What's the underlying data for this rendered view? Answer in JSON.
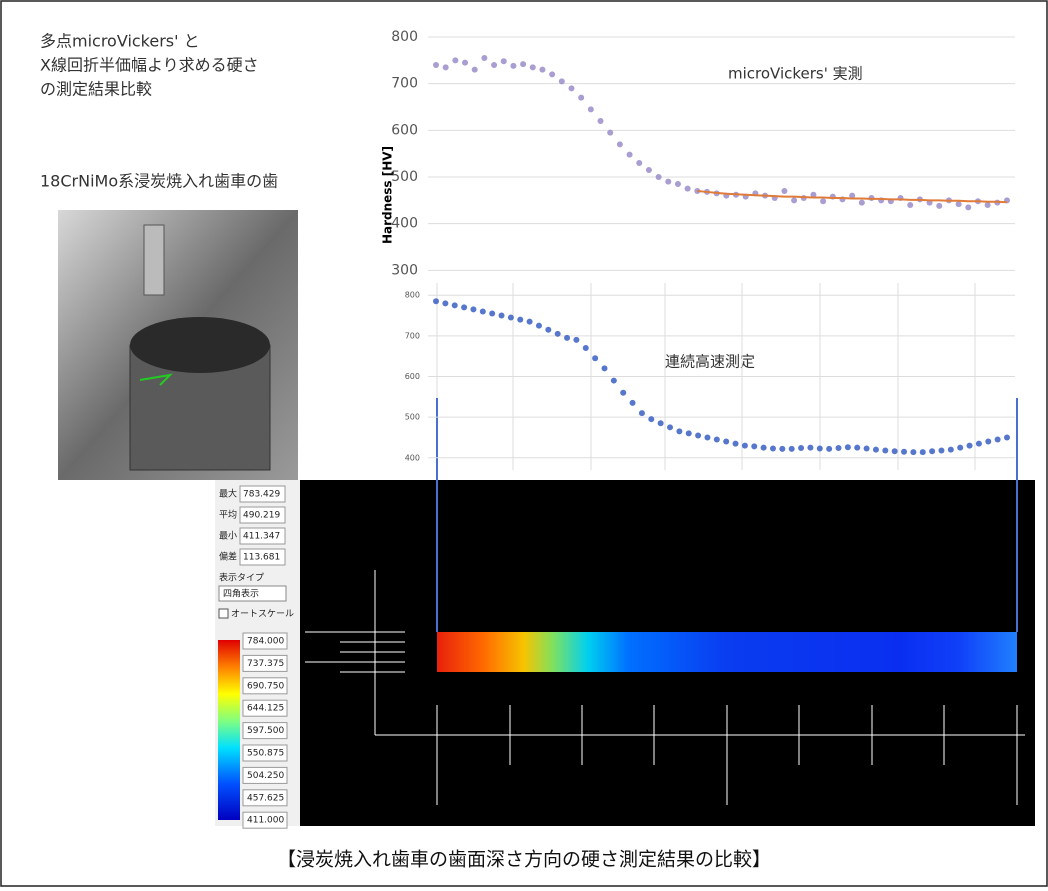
{
  "header": {
    "lines": [
      "多点microVickers' と",
      "X線回折半価幅より求める硬さ",
      "の測定結果比較"
    ]
  },
  "photo_caption": "18CrNiMo系浸炭焼入れ歯車の歯",
  "panel": {
    "stats": [
      [
        "最大",
        "783.429"
      ],
      [
        "平均",
        "490.219"
      ],
      [
        "最小",
        "411.347"
      ],
      [
        "偏差",
        "113.681"
      ]
    ],
    "display_type_label": "表示タイプ",
    "display_type": "四角表示",
    "autoscale": "オートスケール",
    "colorbar": [
      "784.000",
      "737.375",
      "690.750",
      "644.125",
      "597.500",
      "550.875",
      "504.250",
      "457.625",
      "411.000"
    ]
  },
  "caption": "【浸炭焼入れ歯車の歯面深さ方向の硬さ測定結果の比較】",
  "chart_data": [
    {
      "type": "scatter",
      "annotation": "microVickers' 実測",
      "y_label": "Hardness [HV]",
      "ylim": [
        290,
        815
      ],
      "yticks": [
        300,
        400,
        500,
        600,
        700,
        800
      ],
      "grid": true,
      "series": [
        {
          "color": "#9a8cc9",
          "values": [
            740,
            735,
            750,
            745,
            730,
            755,
            740,
            748,
            738,
            742,
            735,
            730,
            720,
            705,
            690,
            670,
            645,
            620,
            595,
            570,
            548,
            530,
            515,
            500,
            490,
            485,
            475,
            470,
            468,
            465,
            460,
            462,
            458,
            465,
            460,
            455,
            470,
            450,
            455,
            462,
            448,
            458,
            452,
            460,
            445,
            455,
            450,
            448,
            455,
            440,
            452,
            445,
            438,
            450,
            442,
            435,
            448,
            440,
            445,
            450
          ]
        },
        {
          "color": "#e07b39",
          "line": true,
          "values": [
            null,
            null,
            null,
            null,
            null,
            null,
            null,
            null,
            null,
            null,
            null,
            null,
            null,
            null,
            null,
            null,
            null,
            null,
            null,
            null,
            null,
            null,
            null,
            null,
            null,
            null,
            null,
            470,
            468,
            466,
            464,
            463,
            462,
            461,
            460,
            459,
            458,
            458,
            457,
            456,
            456,
            455,
            455,
            454,
            454,
            453,
            453,
            452,
            452,
            451,
            451,
            450,
            450,
            449,
            449,
            448,
            448,
            447,
            447,
            446
          ]
        }
      ]
    },
    {
      "type": "scatter",
      "annotation": "連続高速測定",
      "ylim": [
        370,
        830
      ],
      "yticks": [
        400,
        500,
        600,
        700,
        800
      ],
      "grid": true,
      "series": [
        {
          "color": "#3a5fc4",
          "values": [
            785,
            780,
            775,
            770,
            765,
            760,
            755,
            750,
            745,
            740,
            735,
            725,
            715,
            705,
            695,
            690,
            670,
            645,
            620,
            590,
            560,
            535,
            510,
            495,
            485,
            475,
            465,
            460,
            455,
            450,
            445,
            440,
            435,
            430,
            428,
            425,
            423,
            422,
            422,
            424,
            425,
            423,
            422,
            424,
            426,
            425,
            423,
            420,
            418,
            416,
            415,
            414,
            414,
            416,
            418,
            420,
            425,
            430,
            435,
            440,
            445,
            450
          ]
        }
      ]
    }
  ]
}
